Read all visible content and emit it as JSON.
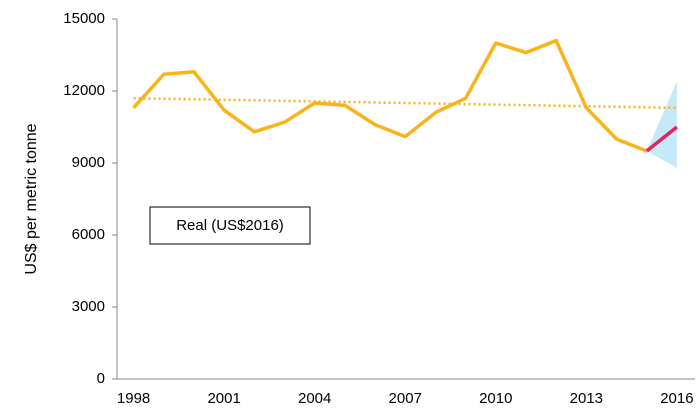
{
  "chart_data": {
    "type": "line",
    "y_label": "US$ per metric tonne",
    "x": [
      1998,
      1999,
      2000,
      2001,
      2002,
      2003,
      2004,
      2005,
      2006,
      2007,
      2008,
      2009,
      2010,
      2011,
      2012,
      2013,
      2014,
      2015,
      2016
    ],
    "series": [
      {
        "name": "Real (US$2016)",
        "color": "#f9b31b",
        "values": [
          11300,
          12700,
          12800,
          11200,
          10300,
          10700,
          11500,
          11400,
          10600,
          10100,
          11100,
          11700,
          14000,
          13600,
          14100,
          11300,
          10000,
          9500,
          null
        ]
      },
      {
        "color": "#e0245e",
        "values": [
          null,
          null,
          null,
          null,
          null,
          null,
          null,
          null,
          null,
          null,
          null,
          null,
          null,
          null,
          null,
          null,
          null,
          9500,
          10500
        ]
      }
    ],
    "band": {
      "color": "#c5e9f8",
      "lower": [
        null,
        null,
        null,
        null,
        null,
        null,
        null,
        null,
        null,
        null,
        null,
        null,
        null,
        null,
        null,
        null,
        null,
        9500,
        8800
      ],
      "upper": [
        null,
        null,
        null,
        null,
        null,
        null,
        null,
        null,
        null,
        null,
        null,
        null,
        null,
        null,
        null,
        null,
        null,
        9500,
        12400
      ]
    },
    "trend": {
      "color": "#f9b31b",
      "x": [
        1998,
        2016
      ],
      "values": [
        11700,
        11300
      ]
    },
    "xlim": [
      1997.45,
      2016.6
    ],
    "xticks": [
      1998,
      2001,
      2004,
      2007,
      2010,
      2013,
      2016
    ],
    "ylim": [
      0,
      15000
    ],
    "yticks": [
      0,
      3000,
      6000,
      9000,
      12000,
      15000
    ],
    "grid": false
  }
}
